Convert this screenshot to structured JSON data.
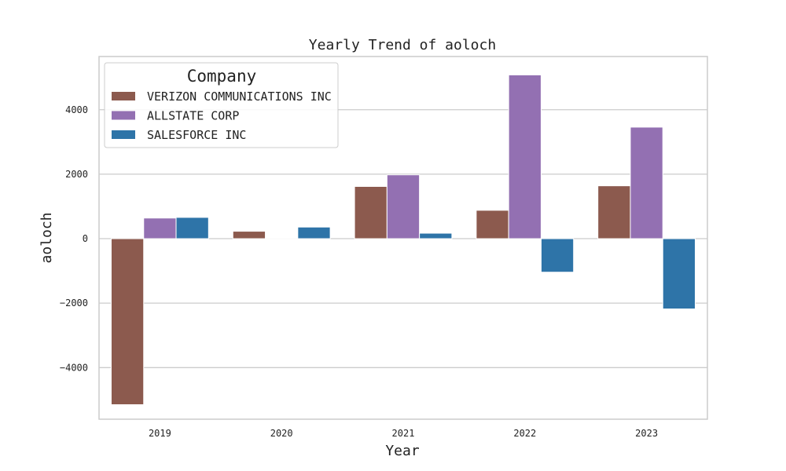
{
  "chart_data": {
    "type": "bar",
    "title": "Yearly Trend of aoloch",
    "xlabel": "Year",
    "ylabel": "aoloch",
    "categories": [
      "2019",
      "2020",
      "2021",
      "2022",
      "2023"
    ],
    "ylim": [
      -5600,
      5650
    ],
    "yticks": [
      -4000,
      -2000,
      0,
      2000,
      4000
    ],
    "ytick_labels": [
      "−4000",
      "−2000",
      "0",
      "2000",
      "4000"
    ],
    "grid": "horizontal",
    "legend": {
      "title": "Company",
      "placement": "top-left"
    },
    "series": [
      {
        "name": "VERIZON COMMUNICATIONS INC",
        "color": "#8c5a4e",
        "values": [
          -5150,
          230,
          1620,
          880,
          1640
        ]
      },
      {
        "name": "ALLSTATE CORP",
        "color": "#9370b2",
        "values": [
          640,
          10,
          1980,
          5080,
          3460
        ]
      },
      {
        "name": "SALESFORCE INC",
        "color": "#2e74a8",
        "values": [
          660,
          360,
          170,
          -1040,
          -2180
        ]
      }
    ]
  }
}
